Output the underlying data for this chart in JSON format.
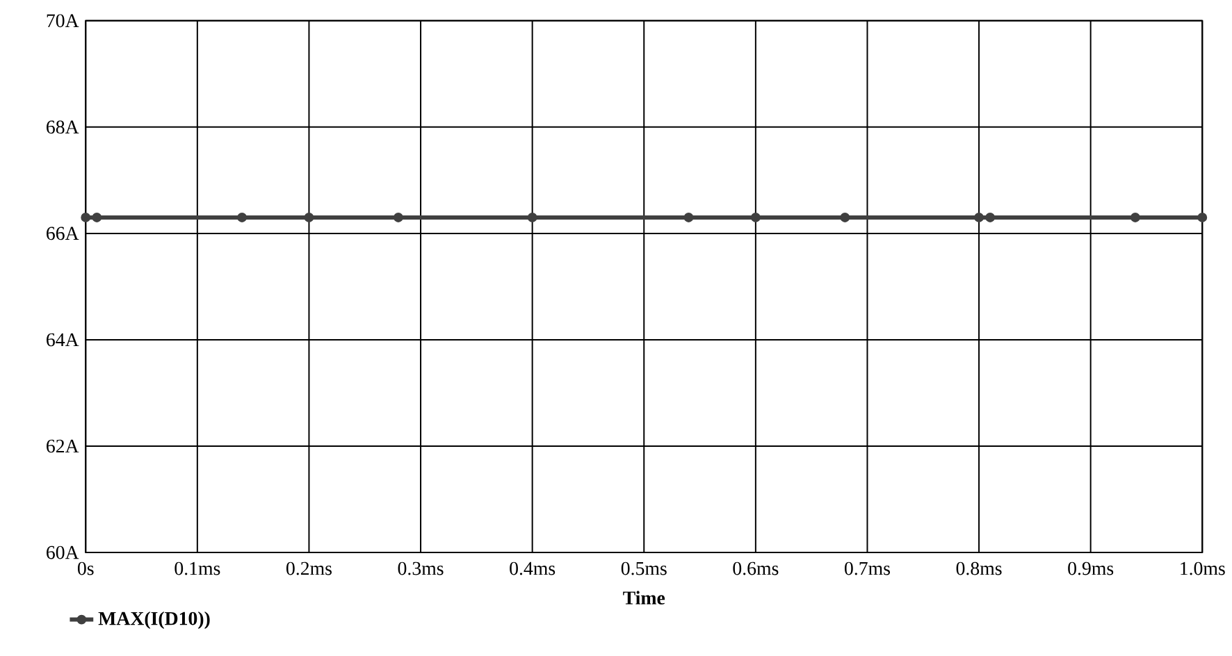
{
  "chart_data": {
    "type": "line",
    "xlabel": "Time",
    "legend": "bottom left",
    "grid": true,
    "marker": "circle",
    "line_style": "solid",
    "x": [
      0,
      0.01,
      0.14,
      0.2,
      0.28,
      0.4,
      0.54,
      0.6,
      0.68,
      0.8,
      0.81,
      0.94,
      1.0
    ],
    "series": [
      {
        "name": "MAX(I(D10))",
        "color": "#404040",
        "values": [
          66.3,
          66.3,
          66.3,
          66.3,
          66.3,
          66.3,
          66.3,
          66.3,
          66.3,
          66.3,
          66.3,
          66.3,
          66.3
        ]
      }
    ],
    "xlim": [
      0,
      1.0
    ],
    "ylim": [
      60,
      70
    ],
    "xticks": [
      {
        "value": 0,
        "label": "0s"
      },
      {
        "value": 0.1,
        "label": "0.1ms"
      },
      {
        "value": 0.2,
        "label": "0.2ms"
      },
      {
        "value": 0.3,
        "label": "0.3ms"
      },
      {
        "value": 0.4,
        "label": "0.4ms"
      },
      {
        "value": 0.5,
        "label": "0.5ms"
      },
      {
        "value": 0.6,
        "label": "0.6ms"
      },
      {
        "value": 0.7,
        "label": "0.7ms"
      },
      {
        "value": 0.8,
        "label": "0.8ms"
      },
      {
        "value": 0.9,
        "label": "0.9ms"
      },
      {
        "value": 1.0,
        "label": "1.0ms"
      }
    ],
    "yticks": [
      {
        "value": 60,
        "label": "60A"
      },
      {
        "value": 62,
        "label": "62A"
      },
      {
        "value": 64,
        "label": "64A"
      },
      {
        "value": 66,
        "label": "66A"
      },
      {
        "value": 68,
        "label": "68A"
      },
      {
        "value": 70,
        "label": "70A"
      }
    ]
  }
}
